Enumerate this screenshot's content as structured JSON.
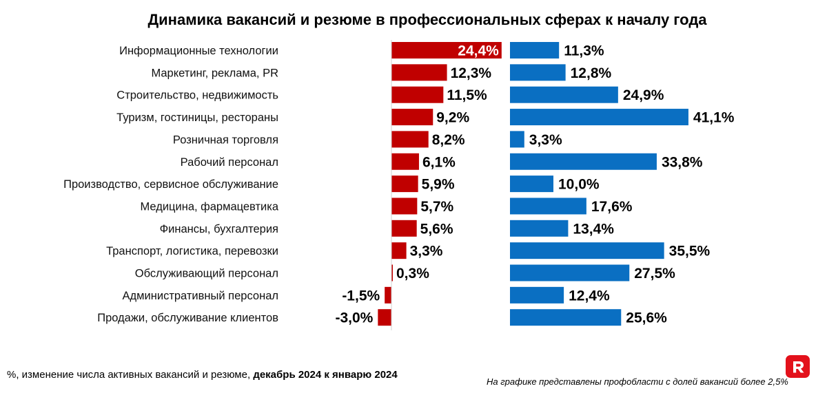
{
  "chart_data": {
    "type": "bar",
    "title": "Динамика вакансий и резюме в профессиональных сферах к началу года",
    "categories": [
      "Информационные технологии",
      "Маркетинг, реклама, PR",
      "Строительство, недвижимость",
      "Туризм, гостиницы, рестораны",
      "Розничная торговля",
      "Рабочий персонал",
      "Производство, сервисное обслуживание",
      "Медицина, фармацевтика",
      "Финансы, бухгалтерия",
      "Транспорт, логистика, перевозки",
      "Обслуживающий персонал",
      "Административный персонал",
      "Продажи, обслуживание клиентов"
    ],
    "series": [
      {
        "color": "#c00000",
        "values": [
          24.4,
          12.3,
          11.5,
          9.2,
          8.2,
          6.1,
          5.9,
          5.7,
          5.6,
          3.3,
          0.3,
          -1.5,
          -3.0
        ],
        "labels": [
          "24,4%",
          "12,3%",
          "11,5%",
          "9,2%",
          "8,2%",
          "6,1%",
          "5,9%",
          "5,7%",
          "5,6%",
          "3,3%",
          "0,3%",
          "-1,5%",
          "-3,0%"
        ]
      },
      {
        "color": "#0a6fc2",
        "values": [
          11.3,
          12.8,
          24.9,
          41.1,
          3.3,
          33.8,
          10.0,
          17.6,
          13.4,
          35.5,
          27.5,
          12.4,
          25.6
        ],
        "labels": [
          "11,3%",
          "12,8%",
          "24,9%",
          "41,1%",
          "3,3%",
          "33,8%",
          "10,0%",
          "17,6%",
          "13,4%",
          "35,5%",
          "27,5%",
          "12,4%",
          "25,6%"
        ]
      }
    ],
    "highlight": "Информационные технологии",
    "unit": "%"
  },
  "footnote": {
    "prefix": "%, изменение числа активных вакансий и резюме, ",
    "bold": "декабрь 2024 к январю 2024"
  },
  "note": "На графике представлены профобласти с долей вакансий более 2,5%",
  "logo": {
    "letter": "R",
    "color": "#e3111b"
  }
}
